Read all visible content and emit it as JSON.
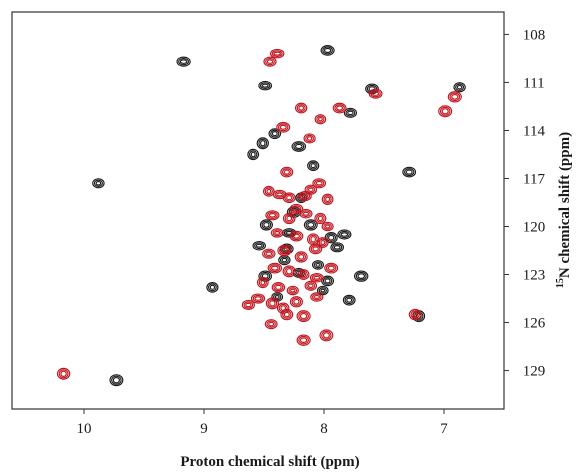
{
  "chart_data": {
    "type": "scatter",
    "title": "",
    "xlabel": "Proton chemical shift (ppm)",
    "ylabel_superscript": "15",
    "ylabel_main": "N chemical shift (ppm)",
    "xlim": [
      10.6,
      6.5
    ],
    "ylim": [
      106.6,
      131.4
    ],
    "x_ticks": [
      10,
      9,
      8,
      7
    ],
    "y_ticks": [
      108,
      111,
      114,
      117,
      120,
      123,
      126,
      129
    ],
    "grid": false,
    "series": [
      {
        "color": "#1a1a1a",
        "points": [
          [
            9.88,
            117.3
          ],
          [
            9.73,
            129.6
          ],
          [
            9.17,
            109.7
          ],
          [
            8.93,
            123.8
          ],
          [
            8.49,
            111.2
          ],
          [
            7.97,
            109.0
          ],
          [
            7.78,
            112.9
          ],
          [
            7.6,
            111.4
          ],
          [
            7.29,
            116.6
          ],
          [
            7.21,
            125.6
          ],
          [
            6.87,
            111.3
          ],
          [
            8.59,
            115.5
          ],
          [
            8.51,
            114.8
          ],
          [
            8.41,
            114.2
          ],
          [
            8.21,
            115.0
          ],
          [
            8.09,
            116.2
          ],
          [
            8.25,
            119.1
          ],
          [
            8.48,
            119.9
          ],
          [
            8.54,
            121.2
          ],
          [
            8.29,
            120.4
          ],
          [
            8.11,
            119.9
          ],
          [
            7.94,
            120.7
          ],
          [
            7.89,
            121.3
          ],
          [
            8.33,
            122.1
          ],
          [
            8.49,
            123.1
          ],
          [
            8.21,
            122.9
          ],
          [
            8.05,
            122.4
          ],
          [
            7.97,
            123.4
          ],
          [
            7.69,
            123.1
          ],
          [
            7.83,
            120.5
          ],
          [
            7.79,
            124.6
          ],
          [
            8.39,
            124.4
          ],
          [
            8.01,
            124.0
          ],
          [
            8.31,
            121.4
          ],
          [
            8.19,
            118.2
          ]
        ]
      },
      {
        "color": "#c0151e",
        "points": [
          [
            10.17,
            129.2
          ],
          [
            8.45,
            109.7
          ],
          [
            8.39,
            109.2
          ],
          [
            8.19,
            112.6
          ],
          [
            8.03,
            113.3
          ],
          [
            7.87,
            112.6
          ],
          [
            7.57,
            111.7
          ],
          [
            6.99,
            112.8
          ],
          [
            6.91,
            111.9
          ],
          [
            7.24,
            125.5
          ],
          [
            8.17,
            127.1
          ],
          [
            7.98,
            126.8
          ],
          [
            8.34,
            113.8
          ],
          [
            8.12,
            114.5
          ],
          [
            8.31,
            116.6
          ],
          [
            8.46,
            117.8
          ],
          [
            8.37,
            118.0
          ],
          [
            8.29,
            118.2
          ],
          [
            8.16,
            118.1
          ],
          [
            8.04,
            117.3
          ],
          [
            7.97,
            118.3
          ],
          [
            8.43,
            119.3
          ],
          [
            8.29,
            119.5
          ],
          [
            8.15,
            119.2
          ],
          [
            8.03,
            119.5
          ],
          [
            7.97,
            120.0
          ],
          [
            8.39,
            120.4
          ],
          [
            8.23,
            120.6
          ],
          [
            8.09,
            120.8
          ],
          [
            8.01,
            121.0
          ],
          [
            8.46,
            121.7
          ],
          [
            8.33,
            121.5
          ],
          [
            8.19,
            121.9
          ],
          [
            8.07,
            121.4
          ],
          [
            8.41,
            122.6
          ],
          [
            8.29,
            122.8
          ],
          [
            8.17,
            123.0
          ],
          [
            8.06,
            123.2
          ],
          [
            8.51,
            123.5
          ],
          [
            8.38,
            123.8
          ],
          [
            8.26,
            124.0
          ],
          [
            8.11,
            123.7
          ],
          [
            8.55,
            124.5
          ],
          [
            8.43,
            124.8
          ],
          [
            8.34,
            125.1
          ],
          [
            8.23,
            124.7
          ],
          [
            8.06,
            124.4
          ],
          [
            8.63,
            124.9
          ],
          [
            8.31,
            125.5
          ],
          [
            8.17,
            125.6
          ],
          [
            8.44,
            126.1
          ],
          [
            7.94,
            122.6
          ],
          [
            8.23,
            118.9
          ],
          [
            8.11,
            117.7
          ]
        ]
      }
    ]
  }
}
